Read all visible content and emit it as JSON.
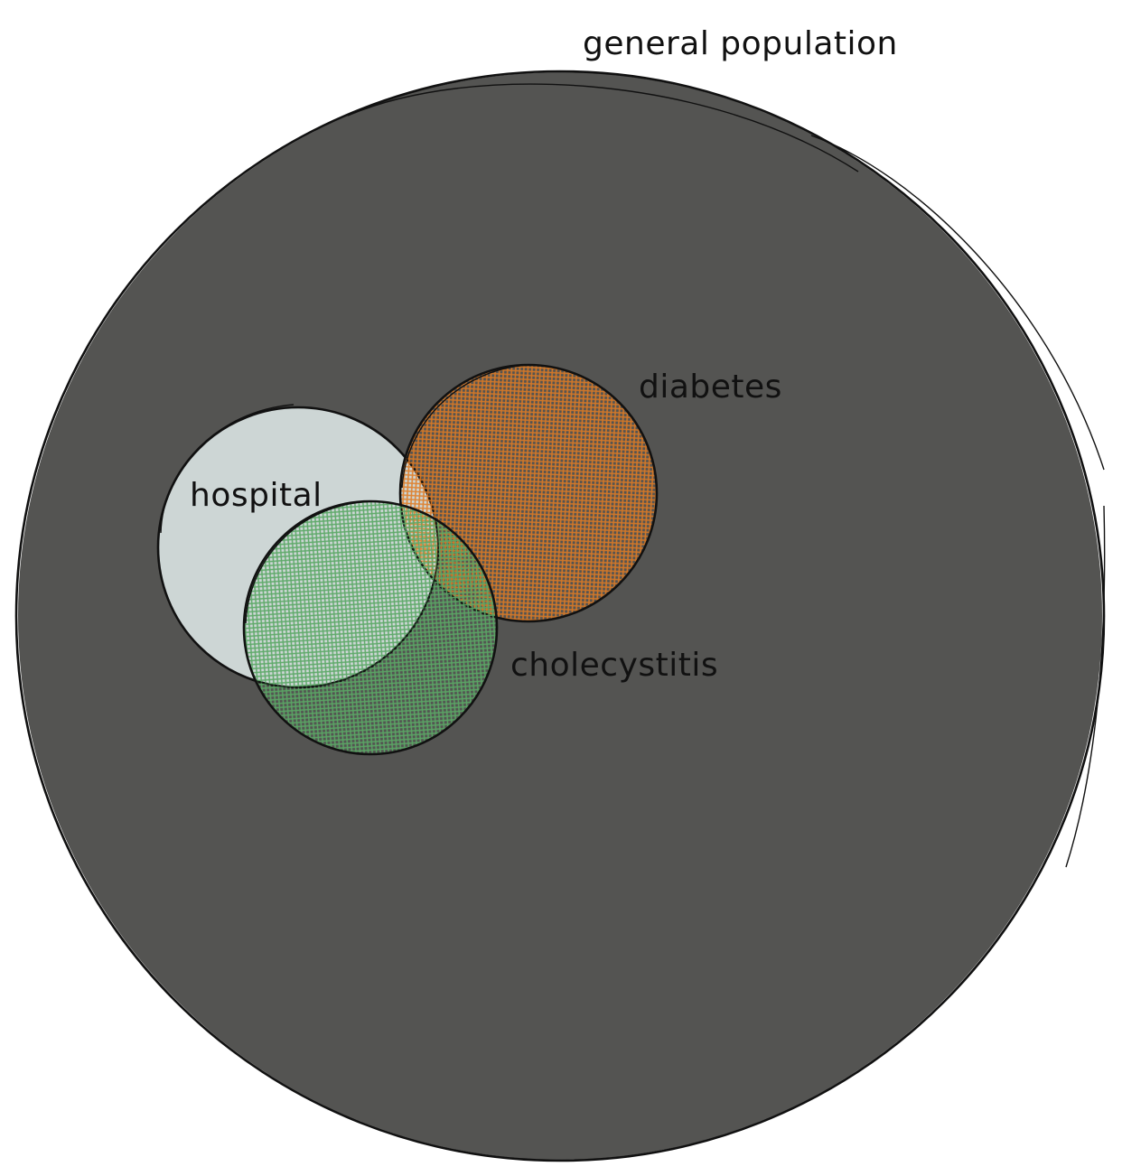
{
  "diagram": {
    "sets": [
      {
        "id": "general",
        "label": "general population",
        "fill": "#545452",
        "fill_style": "solid"
      },
      {
        "id": "hospital",
        "label": "hospital",
        "fill": "#cdd6d5",
        "fill_style": "solid"
      },
      {
        "id": "diabetes",
        "label": "diabetes",
        "fill": "#e07b23",
        "fill_style": "cross-hatch"
      },
      {
        "id": "cholecystitis",
        "label": "cholecystitis",
        "fill": "#5aa865",
        "fill_style": "cross-hatch"
      }
    ],
    "outline_color": "#111111"
  }
}
